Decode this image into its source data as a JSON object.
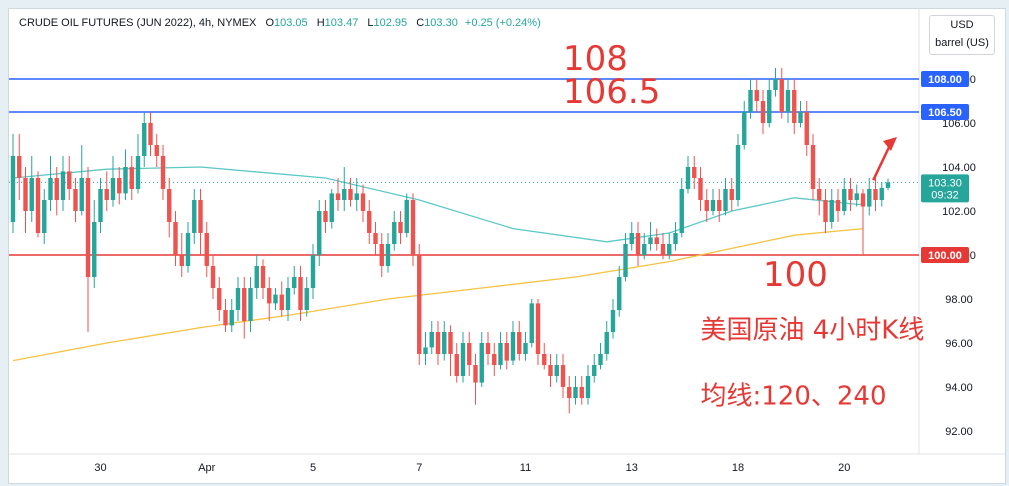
{
  "header": {
    "symbol": "CRUDE OIL FUTURES (JUN 2022), 4h, NYMEX",
    "o_label": "O",
    "o": "103.05",
    "h_label": "H",
    "h": "103.47",
    "l_label": "L",
    "l": "102.95",
    "c_label": "C",
    "c": "103.30",
    "change": "+0.25 (+0.24%)"
  },
  "units": {
    "currency": "USD",
    "unit": "barrel (US)"
  },
  "colors": {
    "up": "#26a69a",
    "down": "#ef5350",
    "ma120": "#5cc8c8",
    "ma240": "#f5c242",
    "level_blue": "#2962ff",
    "level_red": "#e53935",
    "annotation": "#e53935",
    "current": "#26a69a"
  },
  "chart_data": {
    "type": "candlestick",
    "title": "CRUDE OIL FUTURES (JUN 2022), 4h, NYMEX",
    "ylim": [
      91,
      110
    ],
    "y_ticks": [
      92,
      94,
      96,
      98,
      100,
      102,
      104,
      106,
      108
    ],
    "y_tick_labels": [
      "92.00",
      "94.00",
      "96.00",
      "98.00",
      "100.00",
      "102.00",
      "104.00",
      "106.00",
      "108.00"
    ],
    "x_ticks": [
      {
        "label": "30",
        "index": 14
      },
      {
        "label": "Apr",
        "index": 31
      },
      {
        "label": "5",
        "index": 48
      },
      {
        "label": "7",
        "index": 65
      },
      {
        "label": "11",
        "index": 82
      },
      {
        "label": "13",
        "index": 99
      },
      {
        "label": "18",
        "index": 116
      },
      {
        "label": "20",
        "index": 133
      }
    ],
    "candles": [
      [
        101.5,
        104.5,
        101.0,
        105.5
      ],
      [
        104.5,
        103.5,
        102.5,
        105.5
      ],
      [
        103.5,
        102.0,
        101.0,
        104.0
      ],
      [
        102.0,
        103.5,
        101.5,
        104.5
      ],
      [
        103.5,
        101.0,
        100.8,
        103.8
      ],
      [
        101.0,
        102.5,
        100.5,
        103.0
      ],
      [
        102.5,
        103.5,
        102.0,
        104.5
      ],
      [
        103.5,
        102.5,
        101.8,
        104.0
      ],
      [
        102.5,
        103.8,
        102.0,
        104.5
      ],
      [
        103.8,
        103.0,
        102.5,
        104.5
      ],
      [
        103.0,
        102.0,
        101.5,
        103.5
      ],
      [
        102.0,
        103.5,
        101.8,
        105.0
      ],
      [
        103.5,
        99.0,
        96.5,
        104.0
      ],
      [
        99.0,
        101.5,
        98.5,
        102.5
      ],
      [
        101.5,
        103.0,
        101.0,
        103.5
      ],
      [
        103.0,
        102.5,
        102.0,
        103.8
      ],
      [
        102.5,
        103.5,
        102.2,
        104.5
      ],
      [
        103.5,
        102.8,
        102.3,
        104.0
      ],
      [
        102.8,
        104.0,
        102.5,
        104.8
      ],
      [
        104.0,
        103.0,
        102.5,
        104.5
      ],
      [
        103.0,
        104.5,
        102.8,
        105.5
      ],
      [
        104.5,
        106.0,
        104.0,
        106.5
      ],
      [
        106.0,
        105.0,
        104.5,
        106.5
      ],
      [
        105.0,
        104.5,
        104.0,
        105.5
      ],
      [
        104.5,
        103.0,
        102.5,
        105.0
      ],
      [
        103.0,
        101.5,
        100.8,
        103.5
      ],
      [
        101.5,
        100.0,
        99.5,
        102.0
      ],
      [
        100.0,
        99.5,
        99.0,
        101.0
      ],
      [
        99.5,
        101.0,
        99.2,
        101.5
      ],
      [
        101.0,
        102.5,
        100.5,
        103.0
      ],
      [
        102.5,
        101.0,
        100.0,
        103.0
      ],
      [
        101.0,
        99.5,
        99.0,
        101.5
      ],
      [
        99.5,
        98.5,
        98.0,
        100.0
      ],
      [
        98.5,
        97.5,
        97.0,
        99.0
      ],
      [
        97.5,
        96.8,
        96.5,
        98.0
      ],
      [
        96.8,
        97.5,
        96.5,
        98.0
      ],
      [
        97.5,
        98.5,
        97.0,
        99.0
      ],
      [
        98.5,
        97.0,
        96.2,
        99.0
      ],
      [
        97.0,
        98.5,
        96.5,
        99.0
      ],
      [
        98.5,
        99.5,
        98.0,
        100.0
      ],
      [
        99.5,
        98.5,
        98.0,
        99.8
      ],
      [
        98.5,
        97.8,
        97.0,
        99.0
      ],
      [
        97.8,
        98.2,
        97.5,
        98.5
      ],
      [
        98.2,
        97.5,
        97.2,
        98.8
      ],
      [
        97.5,
        98.5,
        97.0,
        99.0
      ],
      [
        98.5,
        99.0,
        98.2,
        99.5
      ],
      [
        99.0,
        97.5,
        97.0,
        99.5
      ],
      [
        97.5,
        98.5,
        97.2,
        99.0
      ],
      [
        98.5,
        100.0,
        98.0,
        100.5
      ],
      [
        100.0,
        102.0,
        99.5,
        102.5
      ],
      [
        102.0,
        101.5,
        101.0,
        102.5
      ],
      [
        101.5,
        102.8,
        101.2,
        103.0
      ],
      [
        102.8,
        102.5,
        102.0,
        103.5
      ],
      [
        102.5,
        103.0,
        102.0,
        104.0
      ],
      [
        103.0,
        102.5,
        102.2,
        103.5
      ],
      [
        102.5,
        102.8,
        102.0,
        103.5
      ],
      [
        102.8,
        102.0,
        101.5,
        103.2
      ],
      [
        102.0,
        101.0,
        100.5,
        102.5
      ],
      [
        101.0,
        100.5,
        100.0,
        101.5
      ],
      [
        100.5,
        99.5,
        99.0,
        101.0
      ],
      [
        99.5,
        100.5,
        99.2,
        101.0
      ],
      [
        100.5,
        101.5,
        100.2,
        102.0
      ],
      [
        101.5,
        101.0,
        100.5,
        102.0
      ],
      [
        101.0,
        102.5,
        100.8,
        102.8
      ],
      [
        102.5,
        100.0,
        99.5,
        102.8
      ],
      [
        100.0,
        95.5,
        95.0,
        100.5
      ],
      [
        95.5,
        95.8,
        95.0,
        96.5
      ],
      [
        95.8,
        96.5,
        95.5,
        97.0
      ],
      [
        96.5,
        95.5,
        95.0,
        97.0
      ],
      [
        95.5,
        96.5,
        95.2,
        97.0
      ],
      [
        96.5,
        95.5,
        94.5,
        96.8
      ],
      [
        95.5,
        94.5,
        94.2,
        96.0
      ],
      [
        94.5,
        96.0,
        94.2,
        96.5
      ],
      [
        96.0,
        95.0,
        94.5,
        96.5
      ],
      [
        95.0,
        94.2,
        93.2,
        95.5
      ],
      [
        94.2,
        96.0,
        94.0,
        96.5
      ],
      [
        96.0,
        95.5,
        95.0,
        96.5
      ],
      [
        95.5,
        95.0,
        94.5,
        96.0
      ],
      [
        95.0,
        96.0,
        94.8,
        96.5
      ],
      [
        96.0,
        95.2,
        94.8,
        96.5
      ],
      [
        95.2,
        96.5,
        95.0,
        97.0
      ],
      [
        96.5,
        95.5,
        95.2,
        97.0
      ],
      [
        95.5,
        96.0,
        95.2,
        96.5
      ],
      [
        96.0,
        97.8,
        95.8,
        98.0
      ],
      [
        97.8,
        95.5,
        95.0,
        98.0
      ],
      [
        95.5,
        95.0,
        94.8,
        96.0
      ],
      [
        95.0,
        94.5,
        94.0,
        95.5
      ],
      [
        94.5,
        95.0,
        94.2,
        95.5
      ],
      [
        95.0,
        94.0,
        93.5,
        95.5
      ],
      [
        94.0,
        93.5,
        92.8,
        94.5
      ],
      [
        93.5,
        94.0,
        93.2,
        94.5
      ],
      [
        94.0,
        93.5,
        93.2,
        94.5
      ],
      [
        93.5,
        94.5,
        93.2,
        95.0
      ],
      [
        94.5,
        95.0,
        94.2,
        95.5
      ],
      [
        95.0,
        95.5,
        94.8,
        96.0
      ],
      [
        95.5,
        96.5,
        95.2,
        97.0
      ],
      [
        96.5,
        97.5,
        96.2,
        98.0
      ],
      [
        97.5,
        99.0,
        97.2,
        99.5
      ],
      [
        99.0,
        100.5,
        98.8,
        101.0
      ],
      [
        100.5,
        101.0,
        100.2,
        101.5
      ],
      [
        101.0,
        100.0,
        99.5,
        101.5
      ],
      [
        100.0,
        100.5,
        99.8,
        101.0
      ],
      [
        100.5,
        100.8,
        100.2,
        101.5
      ],
      [
        100.8,
        100.5,
        100.2,
        101.2
      ],
      [
        100.5,
        100.0,
        99.8,
        101.0
      ],
      [
        100.0,
        100.5,
        99.8,
        101.0
      ],
      [
        100.5,
        101.0,
        100.2,
        101.5
      ],
      [
        101.0,
        103.0,
        100.8,
        103.5
      ],
      [
        103.0,
        104.0,
        102.8,
        104.5
      ],
      [
        104.0,
        103.5,
        103.0,
        104.5
      ],
      [
        103.5,
        102.5,
        102.0,
        104.0
      ],
      [
        102.5,
        102.0,
        101.5,
        103.0
      ],
      [
        102.0,
        102.5,
        101.8,
        103.0
      ],
      [
        102.5,
        102.0,
        101.5,
        103.0
      ],
      [
        102.0,
        103.0,
        101.8,
        103.5
      ],
      [
        103.0,
        102.5,
        102.0,
        103.5
      ],
      [
        102.5,
        105.0,
        102.2,
        105.5
      ],
      [
        105.0,
        106.5,
        104.8,
        107.0
      ],
      [
        106.5,
        107.5,
        106.2,
        108.0
      ],
      [
        107.5,
        107.0,
        106.5,
        108.0
      ],
      [
        107.0,
        106.0,
        105.5,
        107.5
      ],
      [
        106.0,
        107.5,
        105.8,
        108.0
      ],
      [
        107.5,
        108.0,
        107.2,
        108.5
      ],
      [
        108.0,
        106.5,
        106.2,
        108.5
      ],
      [
        106.5,
        107.5,
        106.0,
        108.0
      ],
      [
        107.5,
        106.0,
        105.5,
        108.0
      ],
      [
        106.0,
        106.5,
        105.8,
        107.0
      ],
      [
        106.5,
        105.0,
        104.5,
        107.0
      ],
      [
        105.0,
        103.0,
        102.5,
        105.5
      ],
      [
        103.0,
        102.5,
        101.8,
        103.5
      ],
      [
        102.5,
        101.5,
        101.0,
        103.0
      ],
      [
        101.5,
        102.5,
        101.2,
        103.0
      ],
      [
        102.5,
        102.0,
        101.5,
        103.0
      ],
      [
        102.0,
        103.0,
        101.8,
        103.5
      ],
      [
        103.0,
        102.5,
        102.0,
        103.5
      ],
      [
        102.5,
        102.8,
        102.2,
        103.2
      ],
      [
        102.8,
        102.2,
        100.0,
        103.0
      ],
      [
        102.2,
        103.0,
        101.8,
        103.5
      ],
      [
        103.0,
        102.5,
        102.0,
        103.5
      ],
      [
        102.5,
        103.05,
        102.2,
        103.3
      ],
      [
        103.05,
        103.3,
        102.95,
        103.47
      ]
    ],
    "ma120_label": "120",
    "ma240_label": "240",
    "ma120": [
      [
        0,
        103.5
      ],
      [
        15,
        103.9
      ],
      [
        30,
        104.0
      ],
      [
        50,
        103.5
      ],
      [
        65,
        102.5
      ],
      [
        80,
        101.2
      ],
      [
        95,
        100.6
      ],
      [
        105,
        101.0
      ],
      [
        115,
        102.0
      ],
      [
        125,
        102.6
      ],
      [
        135,
        102.3
      ],
      [
        136,
        102.3
      ]
    ],
    "ma240": [
      [
        0,
        95.2
      ],
      [
        15,
        96.0
      ],
      [
        30,
        96.7
      ],
      [
        45,
        97.3
      ],
      [
        60,
        98.0
      ],
      [
        75,
        98.5
      ],
      [
        90,
        99.0
      ],
      [
        105,
        99.7
      ],
      [
        115,
        100.3
      ],
      [
        125,
        100.9
      ],
      [
        136,
        101.2
      ]
    ],
    "levels": [
      {
        "value": 108.0,
        "label": "108.00",
        "color": "#2962ff"
      },
      {
        "value": 106.5,
        "label": "106.50",
        "color": "#2962ff"
      },
      {
        "value": 100.0,
        "label": "100.00",
        "color": "#e53935"
      }
    ],
    "current": {
      "value": 103.3,
      "label": "103.30",
      "countdown": "09:32"
    },
    "annotations": [
      {
        "text": "108",
        "x_index": 88,
        "y": 108.4
      },
      {
        "text": "106.5",
        "x_index": 88,
        "y": 106.9
      },
      {
        "text": "100",
        "x_index": 120,
        "y": 98.6
      },
      {
        "text": "美国原油 4小时K线",
        "x_index": 110,
        "y": 96.2
      },
      {
        "text": "均线:120、240",
        "x_index": 110,
        "y": 93.2
      }
    ]
  }
}
